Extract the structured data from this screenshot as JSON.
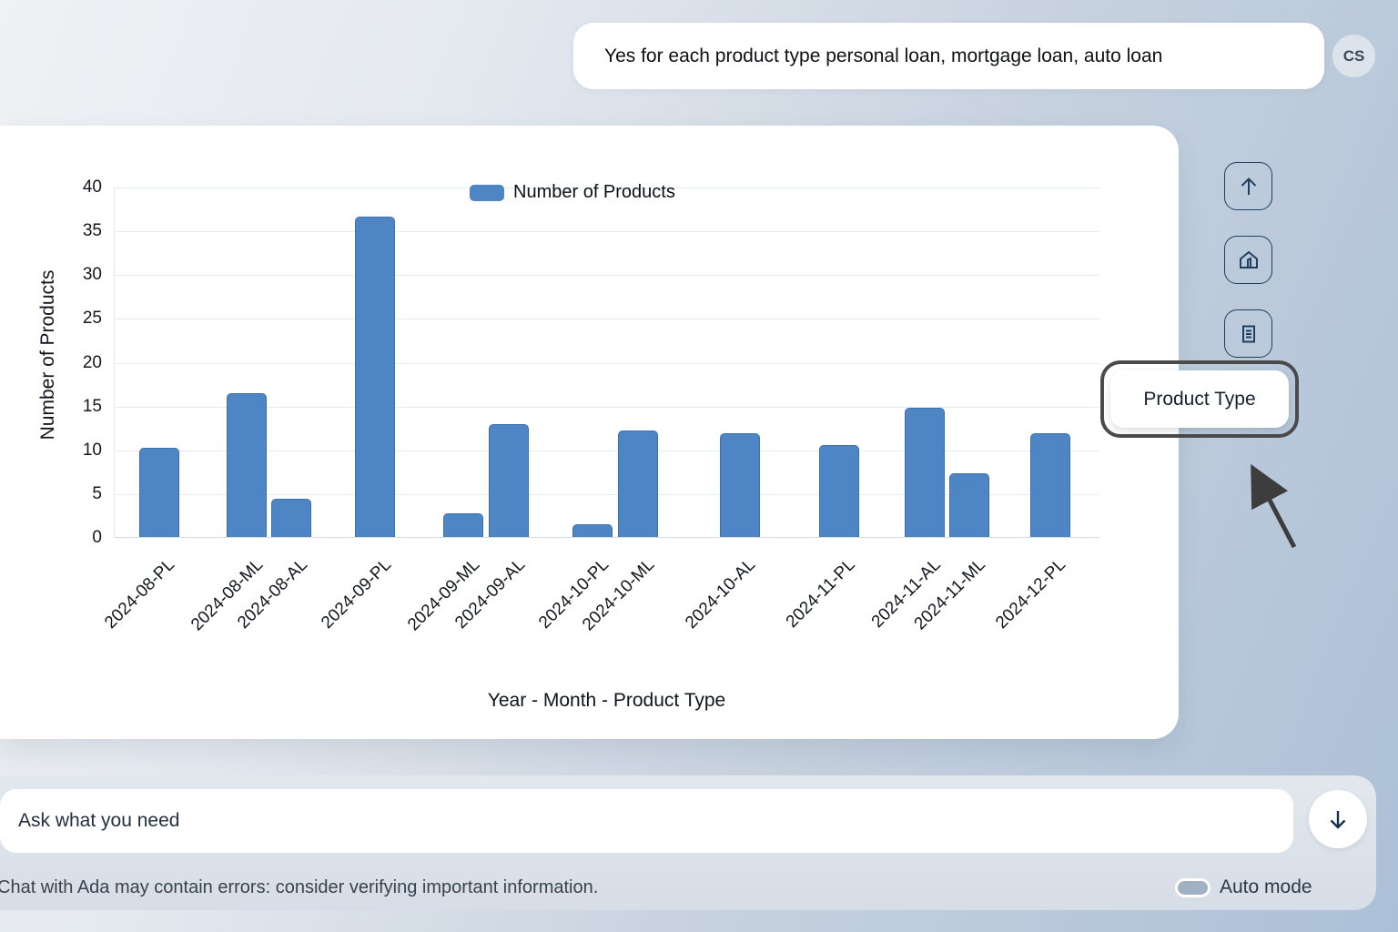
{
  "chat": {
    "user_message": "Yes for each product type personal loan, mortgage loan, auto loan",
    "avatar_initials": "CS"
  },
  "chart_data": {
    "type": "bar",
    "title": "",
    "xlabel": "Year - Month - Product Type",
    "ylabel": "Number of Products",
    "legend_label": "Number of Products",
    "legend_position": "top-center",
    "ylim": [
      0,
      40
    ],
    "yticks": [
      0,
      5,
      10,
      15,
      20,
      25,
      30,
      35,
      40
    ],
    "grid": "horizontal",
    "bar_color": "#4e86c5",
    "bar_border_color": "#3a70ae",
    "categories": [
      "2024-08-PL",
      "2024-08-ML",
      "2024-08-AL",
      "2024-09-PL",
      "2024-09-ML",
      "2024-09-AL",
      "2024-10-PL",
      "2024-10-ML",
      "2024-10-AL",
      "2024-11-PL",
      "2024-11-AL",
      "2024-11-ML",
      "2024-12-PL"
    ],
    "values": [
      10.2,
      16.4,
      4.4,
      36.6,
      2.7,
      12.9,
      1.5,
      12.2,
      11.8,
      10.5,
      14.8,
      7.3,
      11.8
    ],
    "x_positions_pct": [
      4.5,
      13.4,
      17.9,
      26.4,
      35.4,
      40.0,
      48.5,
      53.1,
      63.4,
      73.5,
      82.2,
      86.7,
      94.9
    ]
  },
  "toolbar": {
    "icons": [
      "arrow-up-icon",
      "home-icon",
      "document-icon"
    ]
  },
  "callout": {
    "label": "Product Type"
  },
  "composer": {
    "placeholder": "Ask what you need",
    "send_icon": "arrow-down-icon"
  },
  "footer": {
    "disclaimer": "Chat with Ada may contain errors: consider verifying important information.",
    "auto_mode_label": "Auto mode",
    "auto_mode_state": "off"
  },
  "colors": {
    "accent_blue": "#4e86c5",
    "toolbar_outline": "#1f3f60",
    "callout_ring": "#4a4a4a",
    "background_right": "#abc0d7",
    "background_left": "#eff1f4"
  }
}
